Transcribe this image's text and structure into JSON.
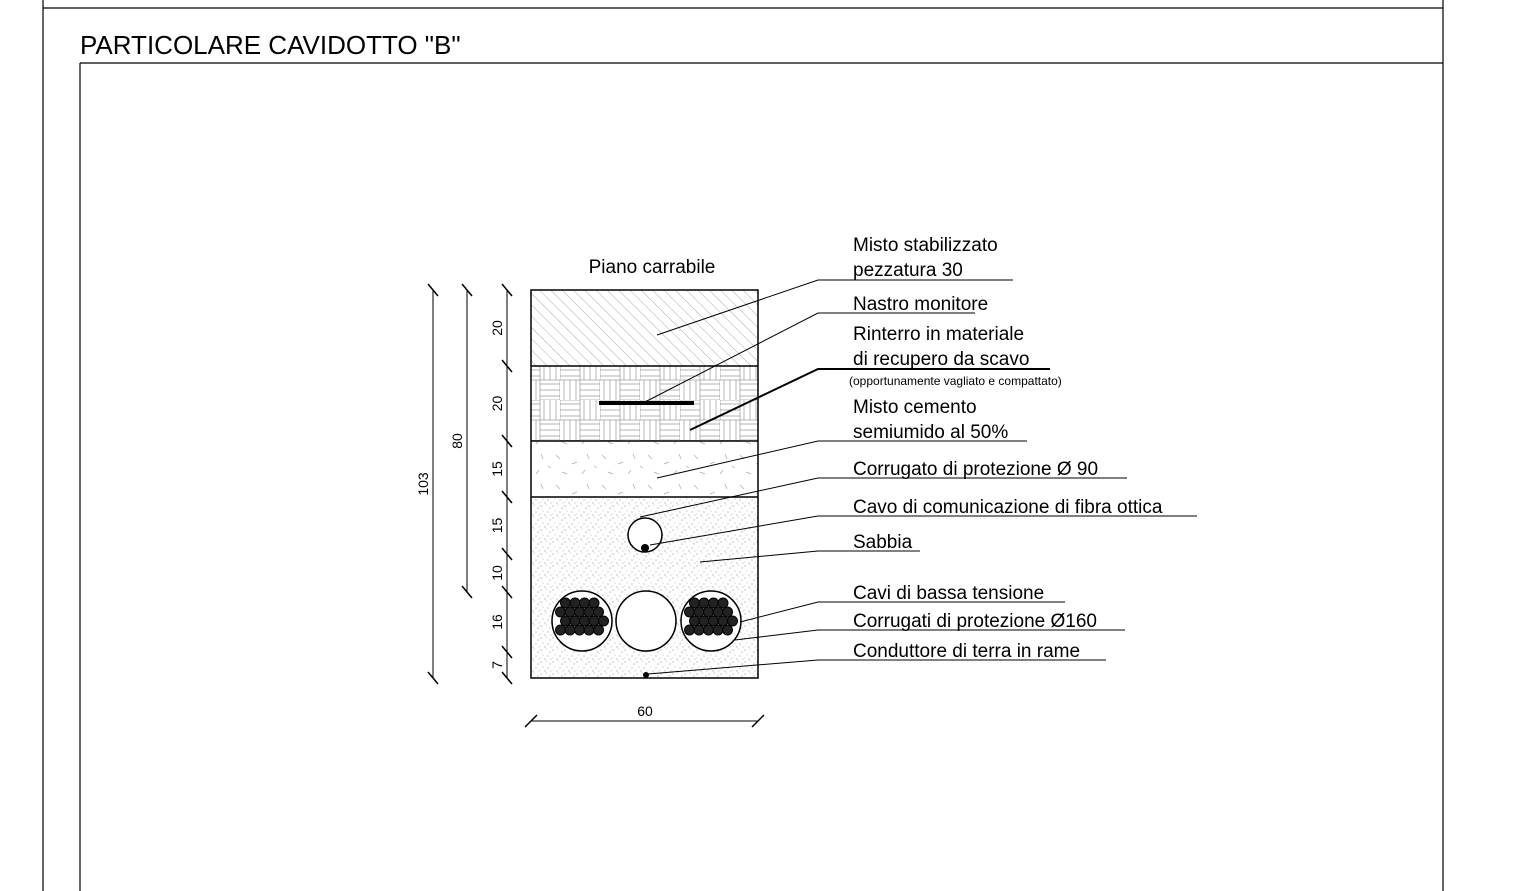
{
  "title": "PARTICOLARE CAVIDOTTO \"B\"",
  "road_label": "Piano carrabile",
  "labels": [
    "Misto stabilizzato",
    "pezzatura 30",
    "Nastro monitore",
    "Rinterro in materiale",
    "di recupero da scavo",
    "(opportunamente vagliato e compattato)",
    "Misto cemento",
    "semiumido al 50%",
    "Corrugato di protezione Ø 90",
    "Cavo di comunicazione di fibra ottica",
    "Sabbia",
    "Cavi di bassa tensione",
    "Corrugati di protezione Ø160",
    "Conduttore di terra in rame"
  ],
  "dimensions": {
    "layers": [
      "20",
      "20",
      "15",
      "15",
      "10",
      "16",
      "7"
    ],
    "partial": "80",
    "total": "103",
    "width": "60"
  }
}
